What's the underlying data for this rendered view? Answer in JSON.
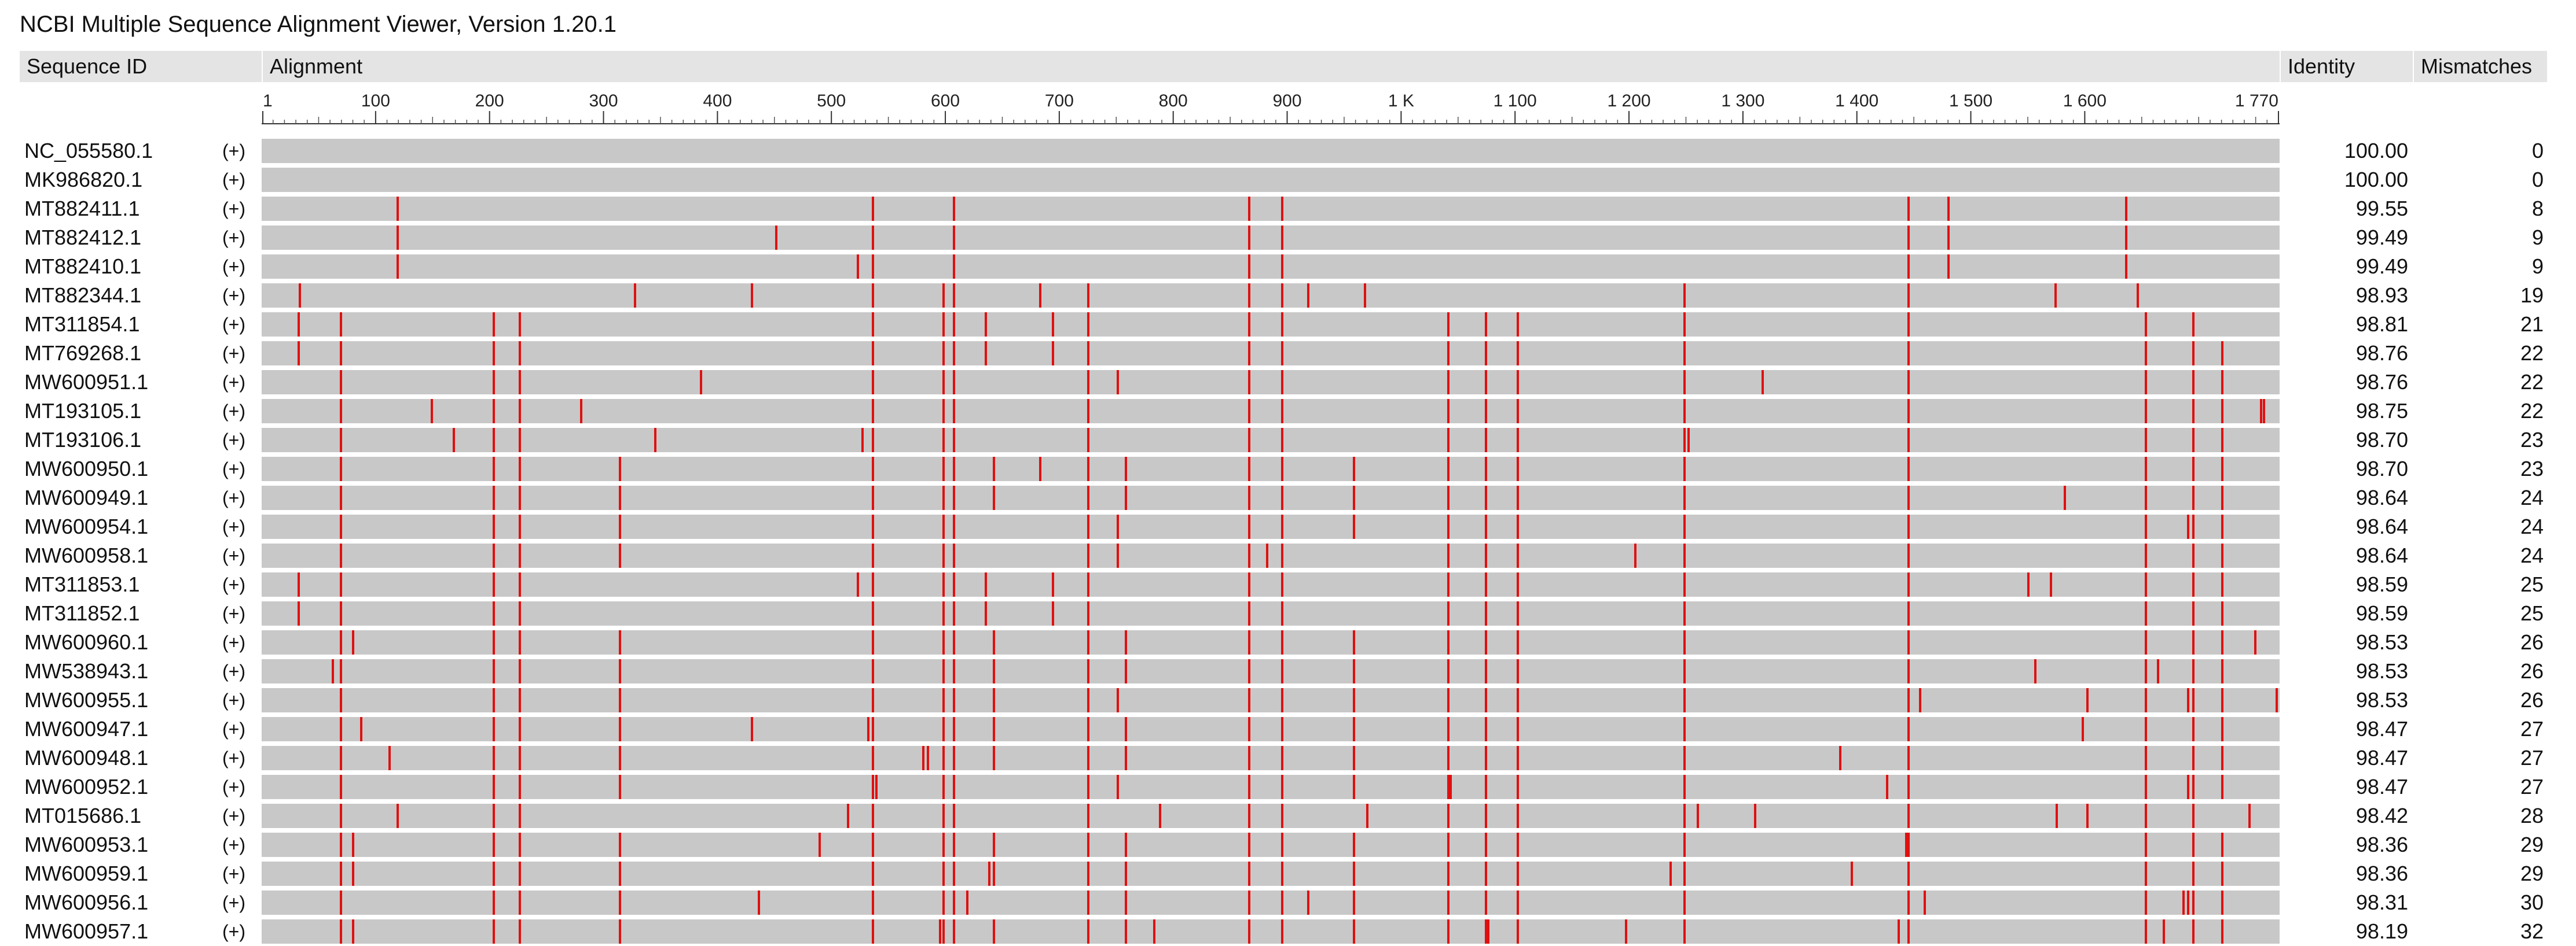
{
  "app": {
    "title": "NCBI Multiple Sequence Alignment Viewer, Version 1.20.1"
  },
  "columns": {
    "sequence_id": "Sequence ID",
    "alignment": "Alignment",
    "identity": "Identity",
    "mismatches": "Mismatches"
  },
  "ruler": {
    "max": 1770,
    "ticks": [
      {
        "pos": 1,
        "label": "1"
      },
      {
        "pos": 100,
        "label": "100"
      },
      {
        "pos": 200,
        "label": "200"
      },
      {
        "pos": 300,
        "label": "300"
      },
      {
        "pos": 400,
        "label": "400"
      },
      {
        "pos": 500,
        "label": "500"
      },
      {
        "pos": 600,
        "label": "600"
      },
      {
        "pos": 700,
        "label": "700"
      },
      {
        "pos": 800,
        "label": "800"
      },
      {
        "pos": 900,
        "label": "900"
      },
      {
        "pos": 1000,
        "label": "1 K"
      },
      {
        "pos": 1100,
        "label": "1 100"
      },
      {
        "pos": 1200,
        "label": "1 200"
      },
      {
        "pos": 1300,
        "label": "1 300"
      },
      {
        "pos": 1400,
        "label": "1 400"
      },
      {
        "pos": 1500,
        "label": "1 500"
      },
      {
        "pos": 1600,
        "label": "1 600"
      },
      {
        "pos": 1770,
        "label": "1 770"
      }
    ]
  },
  "colors": {
    "mismatch": "#e01010",
    "aligned": "#c8c8c8",
    "header": "#e4e4e4"
  },
  "rows": [
    {
      "id": "NC_055580.1",
      "strand": "(+)",
      "identity": "100.00",
      "mismatches": "0",
      "mm": []
    },
    {
      "id": "MK986820.1",
      "strand": "(+)",
      "identity": "100.00",
      "mismatches": "0",
      "mm": []
    },
    {
      "id": "MT882411.1",
      "strand": "(+)",
      "identity": "99.55",
      "mismatches": "8",
      "mm": [
        119,
        536,
        607,
        866,
        895,
        1445,
        1480,
        1636
      ]
    },
    {
      "id": "MT882412.1",
      "strand": "(+)",
      "identity": "99.49",
      "mismatches": "9",
      "mm": [
        119,
        451,
        536,
        607,
        866,
        895,
        1445,
        1480,
        1636
      ]
    },
    {
      "id": "MT882410.1",
      "strand": "(+)",
      "identity": "99.49",
      "mismatches": "9",
      "mm": [
        119,
        523,
        536,
        607,
        866,
        895,
        1445,
        1480,
        1636
      ]
    },
    {
      "id": "MT882344.1",
      "strand": "(+)",
      "identity": "98.93",
      "mismatches": "19",
      "mm": [
        33,
        327,
        430,
        536,
        598,
        607,
        683,
        725,
        866,
        895,
        918,
        968,
        1248,
        1445,
        1574,
        1646
      ]
    },
    {
      "id": "MT311854.1",
      "strand": "(+)",
      "identity": "98.81",
      "mismatches": "21",
      "mm": [
        32,
        69,
        203,
        226,
        536,
        598,
        607,
        635,
        694,
        725,
        866,
        895,
        1041,
        1074,
        1102,
        1248,
        1445,
        1653,
        1695
      ]
    },
    {
      "id": "MT769268.1",
      "strand": "(+)",
      "identity": "98.76",
      "mismatches": "22",
      "mm": [
        32,
        69,
        203,
        226,
        536,
        598,
        607,
        635,
        694,
        725,
        866,
        895,
        1041,
        1074,
        1102,
        1248,
        1445,
        1653,
        1695,
        1720
      ]
    },
    {
      "id": "MW600951.1",
      "strand": "(+)",
      "identity": "98.76",
      "mismatches": "22",
      "mm": [
        69,
        203,
        226,
        385,
        536,
        598,
        607,
        725,
        751,
        866,
        895,
        1041,
        1074,
        1102,
        1248,
        1317,
        1445,
        1653,
        1695,
        1720
      ]
    },
    {
      "id": "MT193105.1",
      "strand": "(+)",
      "identity": "98.75",
      "mismatches": "22",
      "mm": [
        69,
        149,
        203,
        226,
        280,
        536,
        598,
        607,
        725,
        866,
        895,
        1041,
        1074,
        1102,
        1248,
        1445,
        1653,
        1695,
        1720,
        1754,
        1757
      ]
    },
    {
      "id": "MT193106.1",
      "strand": "(+)",
      "identity": "98.70",
      "mismatches": "23",
      "mm": [
        69,
        168,
        203,
        226,
        345,
        527,
        536,
        598,
        607,
        725,
        866,
        895,
        1041,
        1074,
        1102,
        1248,
        1252,
        1445,
        1653,
        1695,
        1720
      ]
    },
    {
      "id": "MW600950.1",
      "strand": "(+)",
      "identity": "98.70",
      "mismatches": "23",
      "mm": [
        69,
        203,
        226,
        314,
        536,
        598,
        607,
        642,
        683,
        725,
        758,
        866,
        895,
        958,
        1041,
        1074,
        1102,
        1248,
        1445,
        1653,
        1695,
        1720
      ]
    },
    {
      "id": "MW600949.1",
      "strand": "(+)",
      "identity": "98.64",
      "mismatches": "24",
      "mm": [
        69,
        203,
        226,
        314,
        536,
        598,
        607,
        642,
        725,
        758,
        866,
        895,
        958,
        1041,
        1074,
        1102,
        1248,
        1445,
        1582,
        1653,
        1695,
        1720
      ]
    },
    {
      "id": "MW600954.1",
      "strand": "(+)",
      "identity": "98.64",
      "mismatches": "24",
      "mm": [
        69,
        203,
        226,
        314,
        536,
        598,
        607,
        725,
        751,
        866,
        895,
        958,
        1041,
        1074,
        1102,
        1248,
        1445,
        1653,
        1690,
        1695,
        1720
      ]
    },
    {
      "id": "MW600958.1",
      "strand": "(+)",
      "identity": "98.64",
      "mismatches": "24",
      "mm": [
        69,
        203,
        226,
        314,
        536,
        598,
        607,
        725,
        751,
        866,
        882,
        895,
        1041,
        1074,
        1102,
        1205,
        1248,
        1445,
        1653,
        1695,
        1720
      ]
    },
    {
      "id": "MT311853.1",
      "strand": "(+)",
      "identity": "98.59",
      "mismatches": "25",
      "mm": [
        32,
        69,
        203,
        226,
        523,
        536,
        598,
        607,
        635,
        694,
        725,
        866,
        895,
        1041,
        1074,
        1102,
        1248,
        1445,
        1550,
        1570,
        1653,
        1695,
        1720
      ]
    },
    {
      "id": "MT311852.1",
      "strand": "(+)",
      "identity": "98.59",
      "mismatches": "25",
      "mm": [
        32,
        69,
        203,
        226,
        536,
        598,
        607,
        635,
        694,
        725,
        866,
        895,
        1041,
        1074,
        1102,
        1248,
        1445,
        1653,
        1695,
        1720
      ]
    },
    {
      "id": "MW600960.1",
      "strand": "(+)",
      "identity": "98.53",
      "mismatches": "26",
      "mm": [
        69,
        80,
        203,
        226,
        314,
        536,
        598,
        607,
        642,
        725,
        758,
        866,
        895,
        958,
        1041,
        1074,
        1102,
        1248,
        1445,
        1653,
        1695,
        1720,
        1749
      ]
    },
    {
      "id": "MW538943.1",
      "strand": "(+)",
      "identity": "98.53",
      "mismatches": "26",
      "mm": [
        62,
        69,
        203,
        226,
        314,
        536,
        598,
        607,
        642,
        725,
        758,
        866,
        895,
        958,
        1041,
        1074,
        1102,
        1248,
        1445,
        1556,
        1653,
        1664,
        1695,
        1720
      ]
    },
    {
      "id": "MW600955.1",
      "strand": "(+)",
      "identity": "98.53",
      "mismatches": "26",
      "mm": [
        69,
        203,
        226,
        314,
        536,
        598,
        607,
        642,
        725,
        751,
        866,
        895,
        958,
        1041,
        1074,
        1102,
        1248,
        1445,
        1455,
        1602,
        1653,
        1690,
        1695,
        1720,
        1768
      ]
    },
    {
      "id": "MW600947.1",
      "strand": "(+)",
      "identity": "98.47",
      "mismatches": "27",
      "mm": [
        69,
        87,
        203,
        226,
        314,
        430,
        532,
        536,
        598,
        607,
        642,
        725,
        758,
        866,
        895,
        958,
        1041,
        1074,
        1102,
        1248,
        1445,
        1598,
        1653,
        1695,
        1720
      ]
    },
    {
      "id": "MW600948.1",
      "strand": "(+)",
      "identity": "98.47",
      "mismatches": "27",
      "mm": [
        69,
        112,
        203,
        226,
        314,
        536,
        580,
        584,
        598,
        607,
        642,
        725,
        758,
        866,
        895,
        958,
        1041,
        1074,
        1102,
        1248,
        1385,
        1445,
        1653,
        1695,
        1720
      ]
    },
    {
      "id": "MW600952.1",
      "strand": "(+)",
      "identity": "98.47",
      "mismatches": "27",
      "mm": [
        69,
        203,
        226,
        314,
        536,
        539,
        598,
        607,
        725,
        751,
        866,
        895,
        958,
        1041,
        1043,
        1074,
        1102,
        1248,
        1426,
        1445,
        1653,
        1690,
        1695,
        1720
      ]
    },
    {
      "id": "MT015686.1",
      "strand": "(+)",
      "identity": "98.42",
      "mismatches": "28",
      "mm": [
        69,
        119,
        203,
        226,
        514,
        536,
        598,
        607,
        725,
        788,
        866,
        895,
        970,
        1041,
        1074,
        1102,
        1248,
        1260,
        1310,
        1445,
        1575,
        1602,
        1653,
        1695,
        1744
      ]
    },
    {
      "id": "MW600953.1",
      "strand": "(+)",
      "identity": "98.36",
      "mismatches": "29",
      "mm": [
        69,
        80,
        203,
        226,
        314,
        489,
        536,
        598,
        607,
        642,
        725,
        758,
        866,
        895,
        958,
        1041,
        1074,
        1102,
        1248,
        1443,
        1445,
        1653,
        1695,
        1720
      ]
    },
    {
      "id": "MW600959.1",
      "strand": "(+)",
      "identity": "98.36",
      "mismatches": "29",
      "mm": [
        69,
        80,
        203,
        226,
        314,
        536,
        598,
        607,
        638,
        642,
        725,
        758,
        866,
        895,
        958,
        1041,
        1074,
        1102,
        1236,
        1248,
        1395,
        1445,
        1653,
        1695,
        1720
      ]
    },
    {
      "id": "MW600956.1",
      "strand": "(+)",
      "identity": "98.31",
      "mismatches": "30",
      "mm": [
        69,
        203,
        226,
        314,
        436,
        536,
        598,
        607,
        619,
        725,
        758,
        866,
        895,
        918,
        958,
        1041,
        1074,
        1102,
        1248,
        1445,
        1459,
        1653,
        1686,
        1690,
        1695,
        1720
      ]
    },
    {
      "id": "MW600957.1",
      "strand": "(+)",
      "identity": "98.19",
      "mismatches": "32",
      "mm": [
        69,
        80,
        203,
        226,
        314,
        536,
        595,
        598,
        607,
        642,
        725,
        758,
        783,
        866,
        895,
        958,
        1041,
        1074,
        1076,
        1102,
        1197,
        1248,
        1436,
        1445,
        1653,
        1669,
        1695,
        1720
      ]
    }
  ]
}
